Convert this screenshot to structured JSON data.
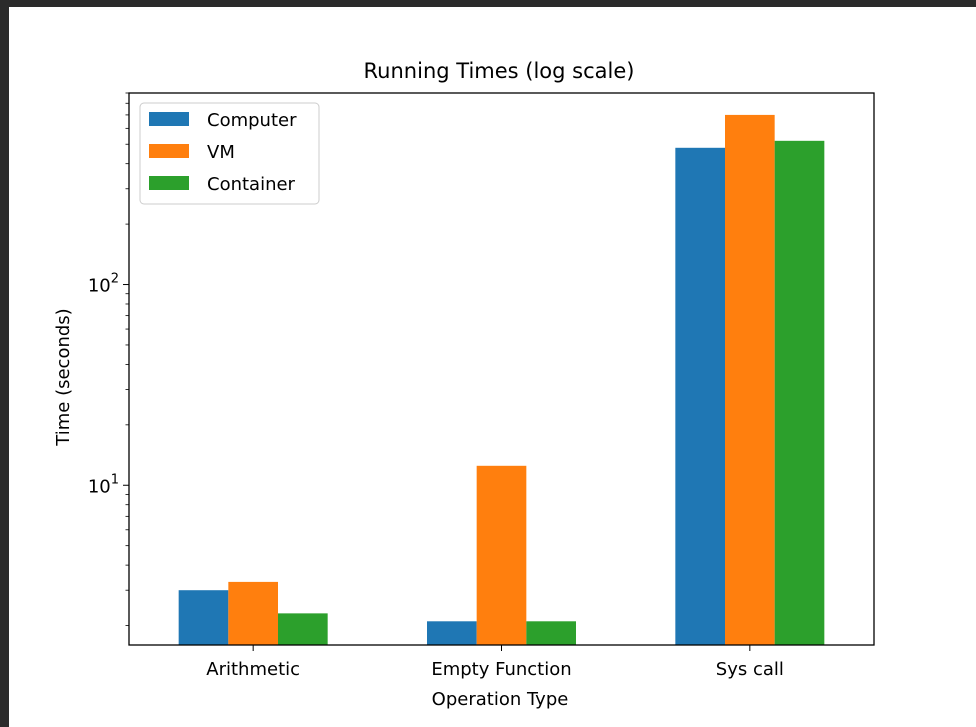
{
  "chart_data": {
    "type": "bar",
    "title": "Running Times (log scale)",
    "xlabel": "Operation Type",
    "ylabel": "Time (seconds)",
    "y_scale": "log",
    "ylim": [
      1.6,
      900
    ],
    "y_ticks": [
      {
        "value": 10,
        "base": "10",
        "exp": "1"
      },
      {
        "value": 100,
        "base": "10",
        "exp": "2"
      }
    ],
    "categories": [
      "Arithmetic",
      "Empty Function",
      "Sys call"
    ],
    "series": [
      {
        "name": "Computer",
        "color": "#1f77b4",
        "values": [
          3.0,
          2.1,
          480
        ]
      },
      {
        "name": "VM",
        "color": "#ff7f0e",
        "values": [
          3.3,
          12.5,
          700
        ]
      },
      {
        "name": "Container",
        "color": "#2ca02c",
        "values": [
          2.3,
          2.1,
          520
        ]
      }
    ],
    "legend_location": "top-left",
    "grid": false
  }
}
